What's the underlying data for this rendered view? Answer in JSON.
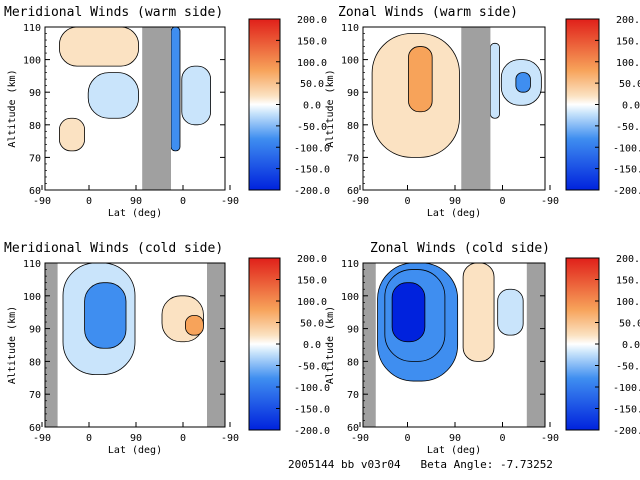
{
  "footer": {
    "run_id": "2005144 bb v03r04",
    "beta_label": "Beta Angle:",
    "beta_value": "-7.73252"
  },
  "colorbar_ticks": [
    "200.0",
    "150.0",
    "100.0",
    "50.0",
    "0.0",
    "-50.0",
    "-100.0",
    "-150.0",
    "-200.0"
  ],
  "colors": {
    "negative_strong": "#0022dd",
    "negative_mid": "#3f8ef0",
    "negative_light": "#c9e4fb",
    "positive_light": "#fbe2c2",
    "positive_mid": "#f7a35a",
    "positive_strong": "#e0201a",
    "no_data": "#a0a0a0"
  },
  "chart_data": [
    {
      "type": "contour",
      "title": "Meridional Winds (warm side)",
      "xlabel": "Lat (deg)",
      "ylabel": "Altitude (km)",
      "x_tick_labels": [
        "-90",
        "0",
        "90",
        "0",
        "-90"
      ],
      "y_ticks": [
        60,
        70,
        80,
        90,
        100,
        110
      ],
      "ylim": [
        60,
        110
      ],
      "colorbar_range": [
        -200,
        200
      ],
      "no_data_bands": [
        [
          0.54,
          0.7
        ]
      ],
      "regions": [
        {
          "x": [
            0.08,
            0.52
          ],
          "y": [
            98,
            110
          ],
          "value": 40
        },
        {
          "x": [
            0.08,
            0.22
          ],
          "y": [
            72,
            82
          ],
          "value": 25
        },
        {
          "x": [
            0.24,
            0.52
          ],
          "y": [
            82,
            96
          ],
          "value": -20
        },
        {
          "x": [
            0.7,
            0.75
          ],
          "y": [
            72,
            110
          ],
          "value": -60
        },
        {
          "x": [
            0.76,
            0.92
          ],
          "y": [
            80,
            98
          ],
          "value": -30
        }
      ]
    },
    {
      "type": "contour",
      "title": "Zonal Winds (warm side)",
      "xlabel": "Lat (deg)",
      "ylabel": "Altitude (km)",
      "x_tick_labels": [
        "-90",
        "0",
        "90",
        "0",
        "-90"
      ],
      "y_ticks": [
        60,
        70,
        80,
        90,
        100,
        110
      ],
      "ylim": [
        60,
        110
      ],
      "colorbar_range": [
        -200,
        200
      ],
      "no_data_bands": [
        [
          0.54,
          0.7
        ]
      ],
      "regions": [
        {
          "x": [
            0.05,
            0.53
          ],
          "y": [
            70,
            108
          ],
          "value": 40
        },
        {
          "x": [
            0.25,
            0.38
          ],
          "y": [
            84,
            104
          ],
          "value": 70
        },
        {
          "x": [
            0.7,
            0.75
          ],
          "y": [
            82,
            105
          ],
          "value": -40
        },
        {
          "x": [
            0.76,
            0.98
          ],
          "y": [
            86,
            100
          ],
          "value": -50
        },
        {
          "x": [
            0.84,
            0.92
          ],
          "y": [
            90,
            96
          ],
          "value": -90
        }
      ]
    },
    {
      "type": "contour",
      "title": "Meridional Winds (cold side)",
      "xlabel": "Lat (deg)",
      "ylabel": "Altitude (km)",
      "x_tick_labels": [
        "-90",
        "0",
        "90",
        "0",
        "-90"
      ],
      "y_ticks": [
        60,
        70,
        80,
        90,
        100,
        110
      ],
      "ylim": [
        60,
        110
      ],
      "colorbar_range": [
        -200,
        200
      ],
      "no_data_bands": [
        [
          0.0,
          0.07
        ],
        [
          0.9,
          1.0
        ]
      ],
      "regions": [
        {
          "x": [
            0.1,
            0.5
          ],
          "y": [
            76,
            110
          ],
          "value": -40
        },
        {
          "x": [
            0.22,
            0.45
          ],
          "y": [
            84,
            104
          ],
          "value": -80
        },
        {
          "x": [
            0.65,
            0.88
          ],
          "y": [
            86,
            100
          ],
          "value": 45
        },
        {
          "x": [
            0.78,
            0.88
          ],
          "y": [
            88,
            94
          ],
          "value": 80
        }
      ]
    },
    {
      "type": "contour",
      "title": "Zonal Winds (cold side)",
      "xlabel": "Lat (deg)",
      "ylabel": "Altitude (km)",
      "x_tick_labels": [
        "-90",
        "0",
        "90",
        "0",
        "-90"
      ],
      "y_ticks": [
        60,
        70,
        80,
        90,
        100,
        110
      ],
      "ylim": [
        60,
        110
      ],
      "colorbar_range": [
        -200,
        200
      ],
      "no_data_bands": [
        [
          0.0,
          0.07
        ],
        [
          0.9,
          1.0
        ]
      ],
      "regions": [
        {
          "x": [
            0.08,
            0.52
          ],
          "y": [
            74,
            110
          ],
          "value": -80
        },
        {
          "x": [
            0.12,
            0.45
          ],
          "y": [
            80,
            108
          ],
          "value": -120
        },
        {
          "x": [
            0.16,
            0.34
          ],
          "y": [
            86,
            104
          ],
          "value": -150
        },
        {
          "x": [
            0.55,
            0.72
          ],
          "y": [
            80,
            110
          ],
          "value": 30
        },
        {
          "x": [
            0.74,
            0.88
          ],
          "y": [
            88,
            102
          ],
          "value": -20
        }
      ]
    }
  ]
}
